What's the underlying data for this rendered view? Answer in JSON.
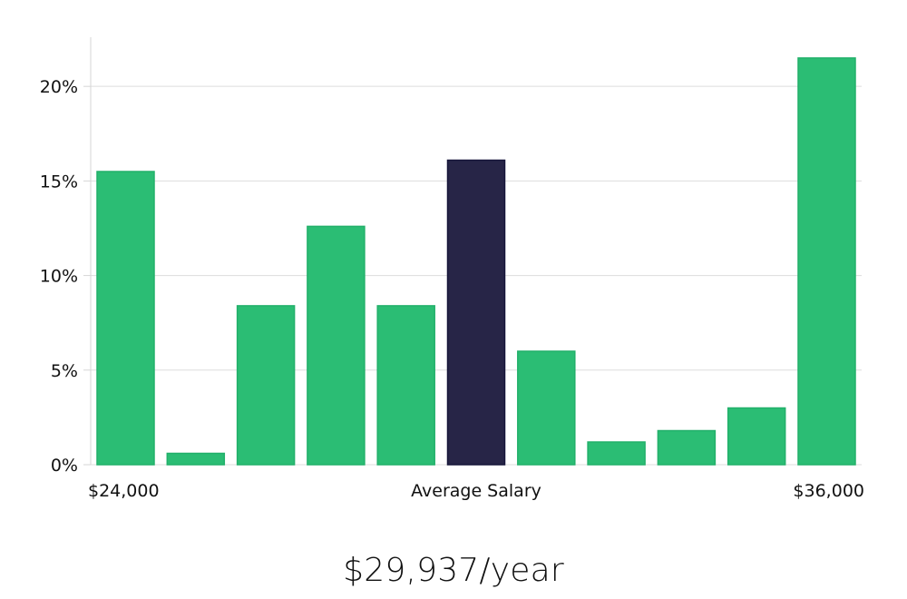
{
  "chart_data": {
    "type": "bar",
    "categories": [
      "",
      "",
      "",
      "",
      "",
      "",
      "",
      "",
      "",
      "",
      ""
    ],
    "values": [
      15.5,
      0.6,
      8.4,
      12.6,
      8.4,
      16.1,
      6.0,
      1.2,
      1.8,
      3.0,
      21.5
    ],
    "highlight_index": 5,
    "ylim": [
      0,
      22.6
    ],
    "yticks": [
      0,
      5,
      10,
      15,
      20
    ],
    "ytick_labels": [
      "0%",
      "5%",
      "10%",
      "15%",
      "20%"
    ],
    "x_labels": {
      "left": "$24,000",
      "center": "Average Salary",
      "right": "$36,000"
    },
    "grid": true,
    "colors": {
      "bar": "#2bbd74",
      "bar_edge": "#22b06a",
      "highlight": "#272547",
      "highlight_edge": "#17163a",
      "grid": "#dddddd",
      "axis": "#d6d6d6"
    }
  },
  "summary": {
    "average_salary": "$29,937/year"
  }
}
